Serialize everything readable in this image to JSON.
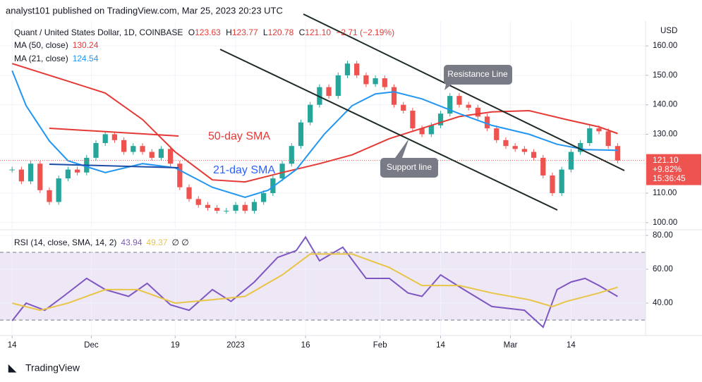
{
  "header": {
    "published": "analyst101 published on TradingView.com, Mar 25, 2023 20:23 UTC"
  },
  "chart_data": [
    {
      "type": "candlestick",
      "title": "Quant / United States Dollar, 1D, COINBASE",
      "legend_ohlc": [
        {
          "label": "O",
          "value": "123.63"
        },
        {
          "label": "H",
          "value": "123.77"
        },
        {
          "label": "L",
          "value": "120.78"
        },
        {
          "label": "C",
          "value": "121.10"
        }
      ],
      "change": "−2.71 (−2.19%)",
      "axis_label": "USD",
      "up_color": "#26a69a",
      "down_color": "#ef5350",
      "x": [
        0,
        2,
        4,
        6,
        8,
        10,
        12,
        14,
        16,
        18,
        20,
        22,
        24,
        26,
        28,
        30,
        32,
        34,
        36,
        38,
        40,
        42,
        44,
        46,
        48,
        50,
        52,
        54,
        56,
        58,
        60,
        62,
        64,
        66,
        68,
        70,
        72,
        74,
        76,
        78,
        80,
        82,
        84,
        86,
        88,
        90,
        92,
        94,
        96,
        98,
        100,
        102,
        104,
        106,
        108,
        110,
        112,
        114,
        116,
        118,
        120,
        122,
        124,
        126,
        128,
        130
      ],
      "values": [
        118,
        114,
        120,
        111,
        107,
        115,
        118,
        117,
        122,
        127,
        130,
        128,
        124,
        126,
        124,
        122,
        125,
        120,
        112,
        108,
        106,
        105,
        104,
        104,
        106,
        104,
        107,
        110,
        115,
        120,
        126,
        134,
        140,
        146,
        143,
        150,
        154,
        150,
        147,
        149,
        146,
        140,
        138,
        132,
        130,
        133,
        137,
        143,
        140,
        139,
        136,
        132,
        128,
        126,
        125,
        124,
        122,
        116,
        110,
        118,
        124,
        127,
        132,
        131,
        126,
        121.1
      ],
      "series": [
        {
          "name": "MA (50, close)",
          "color": "#e53935",
          "value_label": "130.24",
          "x": [
            0,
            12,
            20,
            28,
            35,
            43,
            50,
            58,
            66,
            73,
            81,
            88,
            96,
            103,
            111,
            119,
            126,
            130
          ],
          "values": [
            154,
            148,
            144,
            135,
            124,
            114.5,
            113.8,
            117,
            120,
            123,
            128.5,
            132,
            136,
            137.6,
            138,
            135,
            132.5,
            130.24
          ]
        },
        {
          "name": "MA (21, close)",
          "color": "#2196f3",
          "value_label": "124.54",
          "x": [
            0,
            3,
            8,
            12,
            20,
            28,
            35,
            43,
            50,
            55,
            61,
            67,
            73,
            78,
            82,
            88,
            96,
            103,
            111,
            117,
            123,
            130
          ],
          "values": [
            151.6,
            139.7,
            127.7,
            121,
            117,
            120,
            118.6,
            112,
            108.6,
            111,
            118,
            130,
            139.7,
            143.7,
            144.4,
            142,
            137,
            133,
            130,
            126.6,
            124.8,
            124.54
          ]
        }
      ],
      "last_price_label": "121.10",
      "change_label": "+9.82%",
      "countdown": "15:36:45",
      "annotations": [
        "Resistance Line",
        "Support line",
        "50-day SMA",
        "21-day SMA"
      ],
      "xlim": [
        -2.6,
        136
      ],
      "ylim": [
        97.8,
        168.4
      ],
      "yticks": [
        {
          "value": 100,
          "label": "100.00"
        },
        {
          "value": 110,
          "label": "110.00"
        },
        {
          "value": 120,
          "label": "120.00"
        },
        {
          "value": 130,
          "label": "130.00"
        },
        {
          "value": 140,
          "label": "140.00"
        },
        {
          "value": 150,
          "label": "150.00"
        },
        {
          "value": 160,
          "label": "160.00"
        }
      ],
      "grid": true
    },
    {
      "type": "line",
      "title": "RSI (14, close, SMA, 14, 2)",
      "extra": "∅ ∅",
      "series": [
        {
          "name": "RSI",
          "color": "#7e57c2",
          "value_label": "43.94",
          "x": [
            0,
            3,
            7,
            11,
            16,
            20,
            25,
            29,
            34,
            38,
            43,
            47,
            52,
            57,
            61,
            63,
            66,
            71,
            76,
            81,
            85,
            88,
            92,
            97,
            103,
            110,
            114,
            117,
            120,
            123,
            126,
            130
          ],
          "values": [
            29.6,
            40,
            35.8,
            44,
            54.6,
            48,
            44,
            51.7,
            39,
            35.8,
            48,
            41,
            52.5,
            67,
            71,
            79,
            65,
            73,
            54.6,
            54.6,
            46,
            44,
            56.7,
            48,
            38,
            35.8,
            25.8,
            48,
            52.5,
            54.6,
            50.4,
            43.94
          ]
        },
        {
          "name": "SMA",
          "color": "#e8c547",
          "value_label": "49.37",
          "x": [
            0,
            6,
            12,
            20,
            27,
            35,
            43,
            50,
            58,
            64,
            73,
            81,
            88,
            96,
            103,
            111,
            116,
            119,
            126,
            130
          ],
          "values": [
            40,
            35.8,
            40,
            48,
            48,
            40,
            42,
            44,
            56.7,
            69,
            69,
            61,
            50.4,
            50.4,
            46,
            42,
            38,
            41,
            46,
            49.37
          ]
        }
      ],
      "band": [
        30,
        70
      ],
      "band_color": "#ede7f6",
      "xlim": [
        -2.6,
        136
      ],
      "ylim": [
        21.3,
        82.5
      ],
      "yticks": [
        {
          "value": 40,
          "label": "40.00"
        },
        {
          "value": 60,
          "label": "60.00"
        },
        {
          "value": 80,
          "label": "80.00"
        }
      ],
      "xticks": [
        {
          "value": 0,
          "label": "14"
        },
        {
          "value": 17,
          "label": "Dec"
        },
        {
          "value": 35,
          "label": "19"
        },
        {
          "value": 48,
          "label": "2023"
        },
        {
          "value": 63,
          "label": "16"
        },
        {
          "value": 79,
          "label": "Feb"
        },
        {
          "value": 92,
          "label": "14"
        },
        {
          "value": 107,
          "label": "Mar"
        },
        {
          "value": 120,
          "label": "14"
        }
      ],
      "grid": true
    }
  ],
  "footer": {
    "brand": "TradingView"
  }
}
